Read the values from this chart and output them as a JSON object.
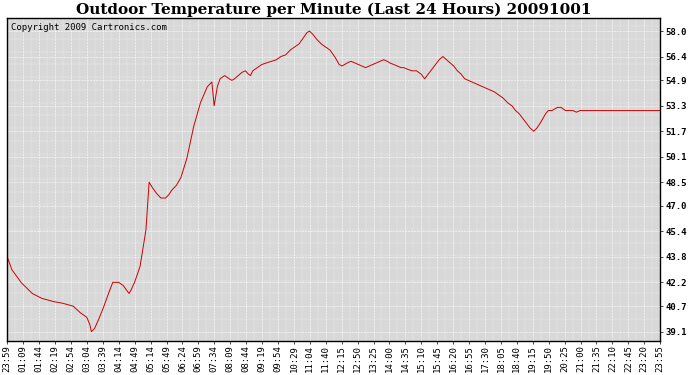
{
  "title": "Outdoor Temperature per Minute (Last 24 Hours) 20091001",
  "copyright_text": "Copyright 2009 Cartronics.com",
  "line_color": "#cc0000",
  "background_color": "#ffffff",
  "plot_bg_color": "#d8d8d8",
  "grid_color": "#ffffff",
  "yticks": [
    39.1,
    40.7,
    42.2,
    43.8,
    45.4,
    47.0,
    48.5,
    50.1,
    51.7,
    53.3,
    54.9,
    56.4,
    58.0
  ],
  "ylim": [
    38.5,
    58.8
  ],
  "xtick_labels": [
    "23:59",
    "01:09",
    "01:44",
    "02:19",
    "02:54",
    "03:04",
    "03:39",
    "04:14",
    "04:49",
    "05:14",
    "05:49",
    "06:24",
    "06:59",
    "07:34",
    "08:09",
    "08:44",
    "09:19",
    "09:54",
    "10:29",
    "11:04",
    "11:40",
    "12:15",
    "12:50",
    "13:25",
    "14:00",
    "14:35",
    "15:10",
    "15:45",
    "16:20",
    "16:55",
    "17:30",
    "18:05",
    "18:40",
    "19:15",
    "19:50",
    "20:25",
    "21:00",
    "21:35",
    "22:10",
    "22:45",
    "23:20",
    "23:55"
  ],
  "title_fontsize": 11,
  "copyright_fontsize": 6.5,
  "tick_fontsize": 6.5,
  "ytick_fontsize": 8,
  "waypoints": [
    [
      0,
      43.8
    ],
    [
      10,
      43.0
    ],
    [
      30,
      42.2
    ],
    [
      55,
      41.5
    ],
    [
      75,
      41.2
    ],
    [
      100,
      41.0
    ],
    [
      120,
      40.9
    ],
    [
      145,
      40.7
    ],
    [
      160,
      40.3
    ],
    [
      175,
      40.0
    ],
    [
      182,
      39.5
    ],
    [
      185,
      39.1
    ],
    [
      192,
      39.3
    ],
    [
      200,
      39.8
    ],
    [
      210,
      40.5
    ],
    [
      220,
      41.3
    ],
    [
      232,
      42.2
    ],
    [
      245,
      42.2
    ],
    [
      255,
      42.0
    ],
    [
      260,
      41.8
    ],
    [
      265,
      41.6
    ],
    [
      268,
      41.5
    ],
    [
      272,
      41.7
    ],
    [
      280,
      42.2
    ],
    [
      292,
      43.2
    ],
    [
      305,
      45.5
    ],
    [
      312,
      48.5
    ],
    [
      318,
      48.2
    ],
    [
      328,
      47.8
    ],
    [
      338,
      47.5
    ],
    [
      348,
      47.5
    ],
    [
      355,
      47.7
    ],
    [
      362,
      48.0
    ],
    [
      372,
      48.3
    ],
    [
      382,
      48.8
    ],
    [
      395,
      50.0
    ],
    [
      410,
      52.0
    ],
    [
      425,
      53.5
    ],
    [
      440,
      54.5
    ],
    [
      450,
      54.8
    ],
    [
      455,
      53.3
    ],
    [
      458,
      53.8
    ],
    [
      462,
      54.5
    ],
    [
      468,
      55.0
    ],
    [
      478,
      55.2
    ],
    [
      488,
      55.0
    ],
    [
      494,
      54.9
    ],
    [
      500,
      55.0
    ],
    [
      508,
      55.2
    ],
    [
      516,
      55.4
    ],
    [
      524,
      55.5
    ],
    [
      530,
      55.3
    ],
    [
      535,
      55.2
    ],
    [
      540,
      55.5
    ],
    [
      550,
      55.7
    ],
    [
      560,
      55.9
    ],
    [
      570,
      56.0
    ],
    [
      582,
      56.1
    ],
    [
      592,
      56.2
    ],
    [
      602,
      56.4
    ],
    [
      612,
      56.5
    ],
    [
      622,
      56.8
    ],
    [
      632,
      57.0
    ],
    [
      642,
      57.2
    ],
    [
      652,
      57.6
    ],
    [
      659,
      57.9
    ],
    [
      665,
      58.0
    ],
    [
      672,
      57.8
    ],
    [
      680,
      57.5
    ],
    [
      690,
      57.2
    ],
    [
      700,
      57.0
    ],
    [
      710,
      56.8
    ],
    [
      720,
      56.4
    ],
    [
      730,
      55.9
    ],
    [
      736,
      55.8
    ],
    [
      742,
      55.9
    ],
    [
      748,
      56.0
    ],
    [
      756,
      56.1
    ],
    [
      764,
      56.0
    ],
    [
      772,
      55.9
    ],
    [
      780,
      55.8
    ],
    [
      788,
      55.7
    ],
    [
      796,
      55.8
    ],
    [
      804,
      55.9
    ],
    [
      812,
      56.0
    ],
    [
      820,
      56.1
    ],
    [
      828,
      56.2
    ],
    [
      836,
      56.1
    ],
    [
      841,
      56.0
    ],
    [
      850,
      55.9
    ],
    [
      858,
      55.8
    ],
    [
      866,
      55.7
    ],
    [
      872,
      55.7
    ],
    [
      880,
      55.6
    ],
    [
      890,
      55.5
    ],
    [
      900,
      55.5
    ],
    [
      910,
      55.3
    ],
    [
      918,
      55.0
    ],
    [
      926,
      55.3
    ],
    [
      934,
      55.6
    ],
    [
      942,
      55.9
    ],
    [
      950,
      56.2
    ],
    [
      958,
      56.4
    ],
    [
      966,
      56.2
    ],
    [
      974,
      56.0
    ],
    [
      982,
      55.8
    ],
    [
      990,
      55.5
    ],
    [
      998,
      55.3
    ],
    [
      1006,
      55.0
    ],
    [
      1014,
      54.9
    ],
    [
      1022,
      54.8
    ],
    [
      1030,
      54.7
    ],
    [
      1038,
      54.6
    ],
    [
      1046,
      54.5
    ],
    [
      1054,
      54.4
    ],
    [
      1062,
      54.3
    ],
    [
      1070,
      54.2
    ],
    [
      1080,
      54.0
    ],
    [
      1090,
      53.8
    ],
    [
      1100,
      53.5
    ],
    [
      1110,
      53.3
    ],
    [
      1118,
      53.0
    ],
    [
      1126,
      52.8
    ],
    [
      1134,
      52.5
    ],
    [
      1142,
      52.2
    ],
    [
      1150,
      51.9
    ],
    [
      1158,
      51.7
    ],
    [
      1165,
      51.9
    ],
    [
      1172,
      52.2
    ],
    [
      1178,
      52.5
    ],
    [
      1184,
      52.8
    ],
    [
      1190,
      53.0
    ],
    [
      1198,
      53.0
    ],
    [
      1210,
      53.2
    ],
    [
      1218,
      53.2
    ],
    [
      1228,
      53.0
    ],
    [
      1236,
      53.0
    ],
    [
      1244,
      53.0
    ],
    [
      1252,
      52.9
    ],
    [
      1260,
      53.0
    ],
    [
      1270,
      53.0
    ],
    [
      1280,
      53.0
    ],
    [
      1290,
      53.0
    ],
    [
      1300,
      53.0
    ],
    [
      1310,
      53.0
    ],
    [
      1320,
      53.0
    ],
    [
      1330,
      53.0
    ],
    [
      1340,
      53.0
    ],
    [
      1350,
      53.0
    ],
    [
      1360,
      53.0
    ],
    [
      1370,
      53.0
    ],
    [
      1380,
      53.0
    ],
    [
      1390,
      53.0
    ],
    [
      1400,
      53.0
    ],
    [
      1410,
      53.0
    ],
    [
      1420,
      53.0
    ],
    [
      1430,
      53.0
    ],
    [
      1436,
      53.0
    ]
  ]
}
